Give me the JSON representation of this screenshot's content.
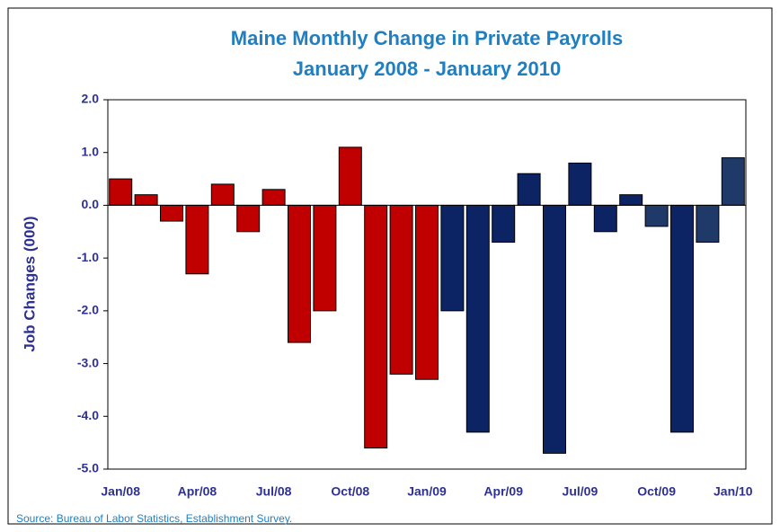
{
  "chart_data": {
    "type": "bar",
    "title": "Maine Monthly Change in Private Payrolls",
    "subtitle": "January 2008 - January 2010",
    "y_label": "Job Changes (000)",
    "source": "Source: Bureau of Labor Statistics, Establishment Survey.",
    "categories": [
      "Jan/08",
      null,
      null,
      "Apr/08",
      null,
      null,
      "Jul/08",
      null,
      null,
      "Oct/08",
      null,
      null,
      "Jan/09",
      null,
      null,
      "Apr/09",
      null,
      null,
      "Jul/09",
      null,
      null,
      "Oct/09",
      null,
      null,
      "Jan/10"
    ],
    "values": [
      0.5,
      0.2,
      -0.3,
      -1.3,
      0.4,
      -0.5,
      0.3,
      -2.6,
      -2.0,
      1.1,
      -4.6,
      -3.2,
      -3.3,
      -2.0,
      -4.3,
      -0.7,
      0.6,
      -4.7,
      0.8,
      -0.5,
      0.2,
      -0.4,
      -4.3,
      -0.7,
      0.9
    ],
    "colors": [
      "#c00000",
      "#c00000",
      "#c00000",
      "#c00000",
      "#c00000",
      "#c00000",
      "#c00000",
      "#c00000",
      "#c00000",
      "#c00000",
      "#c00000",
      "#c00000",
      "#c00000",
      "#0c2464",
      "#0c2464",
      "#0c2464",
      "#0c2464",
      "#0c2464",
      "#0c2464",
      "#0c2464",
      "#0c2464",
      "#1f3a68",
      "#0c2464",
      "#1f3a68",
      "#1f3a68"
    ],
    "ylim": [
      -5,
      2
    ],
    "yticks": [
      {
        "value": -5,
        "label": "-5.0"
      },
      {
        "value": -4,
        "label": "-4.0"
      },
      {
        "value": -3,
        "label": "-3.0"
      },
      {
        "value": -2,
        "label": "-2.0"
      },
      {
        "value": -1,
        "label": "-1.0"
      },
      {
        "value": 0,
        "label": "0.0"
      },
      {
        "value": 1,
        "label": "1.0"
      },
      {
        "value": 2,
        "label": "2.0"
      }
    ],
    "grid": false
  }
}
